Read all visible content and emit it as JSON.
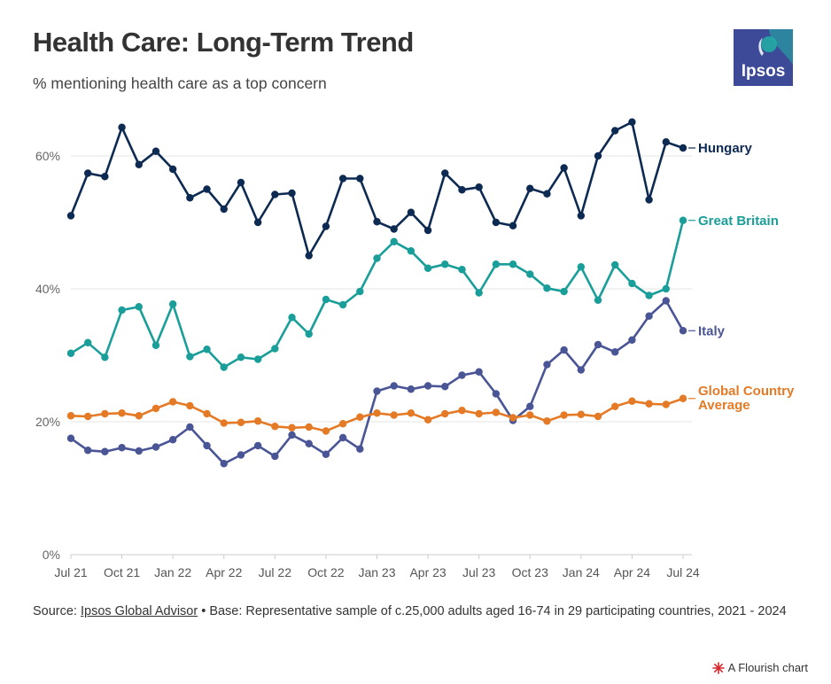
{
  "header": {
    "title": "Health Care: Long-Term Trend",
    "subtitle": "% mentioning health care as a top concern",
    "logo_text": "Ipsos"
  },
  "footer": {
    "source_prefix": "Source: ",
    "source_link": "Ipsos Global Advisor",
    "source_rest": " • Base: Representative sample of c.25,000 adults aged 16-74 in 29 participating countries, 2021 - 2024",
    "credit": "A Flourish chart"
  },
  "colors": {
    "hungary": "#0d2a52",
    "great_britain": "#1a9e99",
    "italy": "#4a5596",
    "global": "#e57a26",
    "logo_bg": "#3c4a98",
    "logo_accent": "#1fb5a6"
  },
  "chart_data": {
    "type": "line",
    "x": [
      "Jul 21",
      "Aug 21",
      "Sep 21",
      "Oct 21",
      "Nov 21",
      "Dec 21",
      "Jan 22",
      "Feb 22",
      "Mar 22",
      "Apr 22",
      "May 22",
      "Jun 22",
      "Jul 22",
      "Aug 22",
      "Sep 22",
      "Oct 22",
      "Nov 22",
      "Dec 22",
      "Jan 23",
      "Feb 23",
      "Mar 23",
      "Apr 23",
      "May 23",
      "Jun 23",
      "Jul 23",
      "Aug 23",
      "Sep 23",
      "Oct 23",
      "Nov 23",
      "Dec 23",
      "Jan 24",
      "Feb 24",
      "Mar 24",
      "Apr 24",
      "May 24",
      "Jun 24",
      "Jul 24"
    ],
    "x_tick_labels": [
      "Jul 21",
      "Oct 21",
      "Jan 22",
      "Apr 22",
      "Jul 22",
      "Oct 22",
      "Jan 23",
      "Apr 23",
      "Jul 23",
      "Oct 23",
      "Jan 24",
      "Apr 24",
      "Jul 24"
    ],
    "y_ticks": [
      0,
      20,
      40,
      60
    ],
    "y_tick_labels": [
      "0%",
      "20%",
      "40%",
      "60%"
    ],
    "ylim": [
      0,
      66
    ],
    "grid": "horizontal",
    "legend": "inline labels at line ends",
    "series": [
      {
        "name": "Hungary",
        "color": "#0d2a52",
        "label_lines": [
          "Hungary"
        ],
        "values": [
          51.0,
          57.4,
          56.9,
          64.3,
          58.7,
          60.7,
          58.0,
          53.7,
          55.0,
          52.0,
          56.0,
          50.0,
          54.2,
          54.4,
          45.0,
          49.4,
          56.6,
          56.6,
          50.1,
          49.0,
          51.5,
          48.8,
          57.4,
          54.9,
          55.3,
          50.0,
          49.5,
          55.1,
          54.3,
          58.2,
          51.0,
          60.0,
          63.8,
          65.1,
          53.4,
          62.1,
          61.2
        ]
      },
      {
        "name": "Great Britain",
        "color": "#1a9e99",
        "label_lines": [
          "Great Britain"
        ],
        "values": [
          30.3,
          31.9,
          29.7,
          36.8,
          37.3,
          31.5,
          37.7,
          29.8,
          30.9,
          28.2,
          29.7,
          29.4,
          31.0,
          35.7,
          33.2,
          38.4,
          37.6,
          39.6,
          44.6,
          47.1,
          45.7,
          43.1,
          43.7,
          42.9,
          39.4,
          43.7,
          43.7,
          42.2,
          40.1,
          39.6,
          43.3,
          38.3,
          43.6,
          40.8,
          39.0,
          40.0,
          50.3
        ]
      },
      {
        "name": "Italy",
        "color": "#4a5596",
        "label_lines": [
          "Italy"
        ],
        "values": [
          17.5,
          15.7,
          15.5,
          16.1,
          15.6,
          16.2,
          17.3,
          19.2,
          16.4,
          13.7,
          15.0,
          16.4,
          14.8,
          18.0,
          16.7,
          15.1,
          17.6,
          15.9,
          24.6,
          25.4,
          24.9,
          25.4,
          25.3,
          27.0,
          27.5,
          24.2,
          20.2,
          22.3,
          28.6,
          30.8,
          27.8,
          31.6,
          30.5,
          32.3,
          35.9,
          38.2,
          33.7
        ]
      },
      {
        "name": "Global Country Average",
        "color": "#e57a26",
        "label_lines": [
          "Global Country",
          "Average"
        ],
        "values": [
          20.9,
          20.8,
          21.2,
          21.3,
          20.9,
          22.0,
          23.0,
          22.4,
          21.2,
          19.8,
          19.9,
          20.1,
          19.3,
          19.1,
          19.2,
          18.6,
          19.7,
          20.7,
          21.3,
          21.0,
          21.3,
          20.3,
          21.2,
          21.7,
          21.2,
          21.4,
          20.6,
          21.0,
          20.1,
          21.0,
          21.1,
          20.8,
          22.3,
          23.1,
          22.7,
          22.6,
          23.5
        ]
      }
    ]
  }
}
